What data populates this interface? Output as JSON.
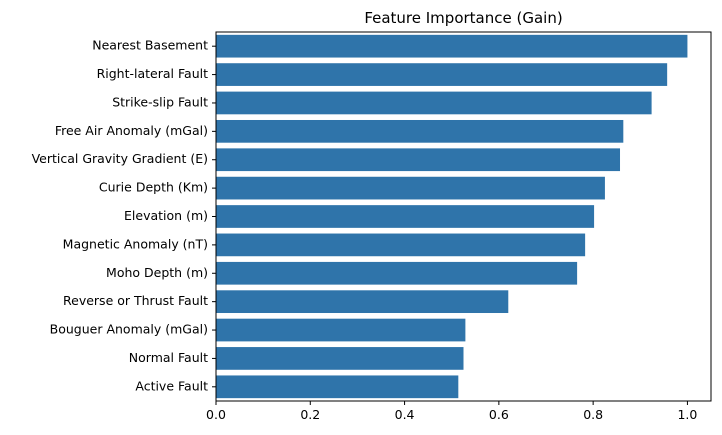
{
  "chart_data": {
    "type": "bar",
    "orientation": "horizontal",
    "title": "Feature Importance (Gain)",
    "xlabel": "",
    "ylabel": "",
    "categories": [
      "Nearest Basement",
      "Right-lateral Fault",
      "Strike-slip Fault",
      "Free Air Anomaly (mGal)",
      "Vertical Gravity Gradient (E)",
      "Curie Depth (Km)",
      "Elevation (m)",
      "Magnetic Anomaly (nT)",
      "Moho Depth (m)",
      "Reverse or Thrust Fault",
      "Bouguer Anomaly (mGal)",
      "Normal Fault",
      "Active Fault"
    ],
    "values": [
      1.0,
      0.957,
      0.924,
      0.864,
      0.857,
      0.825,
      0.802,
      0.783,
      0.766,
      0.62,
      0.529,
      0.525,
      0.514
    ],
    "xlim": [
      0,
      1.05
    ],
    "xticks": [
      "0.0",
      "0.2",
      "0.4",
      "0.6",
      "0.8",
      "1.0"
    ],
    "grid": false,
    "legend": "none",
    "colors": {
      "bar": "#2f74aa",
      "axis": "#000000",
      "background": "#ffffff"
    }
  }
}
